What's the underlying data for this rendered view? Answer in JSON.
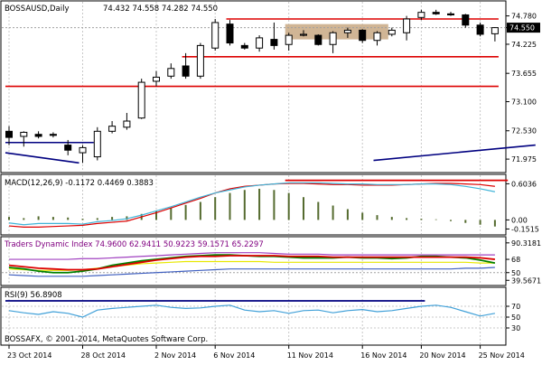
{
  "window": {
    "symbol_title": "BOSSAUSD,Daily",
    "ohlc_readout": "74.432 74.558 74.282 74.550",
    "copyright": "BOSSAFX, © 2001-2014, MetaQuotes Software Corp."
  },
  "colors": {
    "bull": "#ffffff",
    "bear": "#000000",
    "resistance": "#dd0000",
    "trend": "#000080",
    "macd_hist": "#556b2f",
    "macd_signal": "#dd0000",
    "macd_line": "#40b4d8",
    "tdi_purple": "#a040c0",
    "tdi_yellow": "#e8e800",
    "tdi_green": "#008000",
    "tdi_red": "#dd0000",
    "tdi_blue": "#4060c0",
    "rsi_line": "#40a0d8",
    "rsi_top": "#000080",
    "supply_zone": "#c8a882",
    "price_tag_bg": "#000000",
    "price_tag_text": "#ffffff"
  },
  "chart_data": [
    {
      "type": "candlestick",
      "title": "BOSSAUSD,Daily",
      "ylim": [
        71.8,
        74.95
      ],
      "price_tag": "74.550",
      "y_ticks": [
        "74.780",
        "74.550",
        "74.225",
        "73.655",
        "73.100",
        "72.530",
        "71.975"
      ],
      "y_tick_values": [
        74.78,
        74.55,
        74.225,
        73.655,
        73.1,
        72.53,
        71.975
      ],
      "candles": [
        {
          "o": 72.52,
          "h": 72.62,
          "l": 72.25,
          "c": 72.4
        },
        {
          "o": 72.42,
          "h": 72.52,
          "l": 72.22,
          "c": 72.5
        },
        {
          "o": 72.46,
          "h": 72.52,
          "l": 72.38,
          "c": 72.42
        },
        {
          "o": 72.46,
          "h": 72.5,
          "l": 72.4,
          "c": 72.44
        },
        {
          "o": 72.25,
          "h": 72.35,
          "l": 72.05,
          "c": 72.15
        },
        {
          "o": 72.1,
          "h": 72.25,
          "l": 71.9,
          "c": 72.2
        },
        {
          "o": 72.02,
          "h": 72.6,
          "l": 71.95,
          "c": 72.52
        },
        {
          "o": 72.52,
          "h": 72.72,
          "l": 72.48,
          "c": 72.62
        },
        {
          "o": 72.6,
          "h": 72.88,
          "l": 72.55,
          "c": 72.72
        },
        {
          "o": 72.78,
          "h": 73.55,
          "l": 72.76,
          "c": 73.48
        },
        {
          "o": 73.5,
          "h": 73.7,
          "l": 73.4,
          "c": 73.58
        },
        {
          "o": 73.6,
          "h": 73.85,
          "l": 73.55,
          "c": 73.75
        },
        {
          "o": 73.8,
          "h": 74.05,
          "l": 73.55,
          "c": 73.6
        },
        {
          "o": 73.6,
          "h": 74.25,
          "l": 73.55,
          "c": 74.2
        },
        {
          "o": 74.15,
          "h": 74.72,
          "l": 74.1,
          "c": 74.65
        },
        {
          "o": 74.62,
          "h": 74.7,
          "l": 74.2,
          "c": 74.25
        },
        {
          "o": 74.2,
          "h": 74.25,
          "l": 74.12,
          "c": 74.15
        },
        {
          "o": 74.15,
          "h": 74.4,
          "l": 74.08,
          "c": 74.35
        },
        {
          "o": 74.32,
          "h": 74.65,
          "l": 74.12,
          "c": 74.2
        },
        {
          "o": 74.22,
          "h": 74.45,
          "l": 74.1,
          "c": 74.4
        },
        {
          "o": 74.4,
          "h": 74.5,
          "l": 74.38,
          "c": 74.42
        },
        {
          "o": 74.4,
          "h": 74.42,
          "l": 74.2,
          "c": 74.22
        },
        {
          "o": 74.22,
          "h": 74.48,
          "l": 74.05,
          "c": 74.45
        },
        {
          "o": 74.45,
          "h": 74.55,
          "l": 74.35,
          "c": 74.5
        },
        {
          "o": 74.5,
          "h": 74.52,
          "l": 74.25,
          "c": 74.3
        },
        {
          "o": 74.3,
          "h": 74.48,
          "l": 74.2,
          "c": 74.45
        },
        {
          "o": 74.42,
          "h": 74.55,
          "l": 74.38,
          "c": 74.5
        },
        {
          "o": 74.45,
          "h": 74.78,
          "l": 74.3,
          "c": 74.72
        },
        {
          "o": 74.75,
          "h": 74.9,
          "l": 74.7,
          "c": 74.85
        },
        {
          "o": 74.85,
          "h": 74.9,
          "l": 74.8,
          "c": 74.82
        },
        {
          "o": 74.82,
          "h": 74.86,
          "l": 74.78,
          "c": 74.8
        },
        {
          "o": 74.8,
          "h": 74.82,
          "l": 74.55,
          "c": 74.6
        },
        {
          "o": 74.6,
          "h": 74.65,
          "l": 74.38,
          "c": 74.42
        },
        {
          "o": 74.43,
          "h": 74.56,
          "l": 74.28,
          "c": 74.55
        }
      ],
      "resistance_levels": [
        {
          "value": 74.72,
          "from": 15,
          "to": 33
        },
        {
          "value": 73.98,
          "from": 12,
          "to": 33
        },
        {
          "value": 73.4,
          "from": 0,
          "to": 33
        }
      ],
      "trendlines": [
        {
          "from": [
            0,
            72.1
          ],
          "to": [
            5,
            71.9
          ]
        },
        {
          "from": [
            25,
            71.95
          ],
          "to": [
            36,
            72.25
          ]
        },
        {
          "from": [
            0,
            72.3
          ],
          "to": [
            6,
            72.3
          ]
        }
      ],
      "zone": {
        "from": 19,
        "to": 26,
        "top": 74.62,
        "bottom": 74.32
      }
    },
    {
      "type": "line",
      "title": "MACD(12,26,9) -0.1172 0.4469 0.3883",
      "ylim": [
        -0.22,
        0.7
      ],
      "y_ticks": [
        "0.6036",
        "0.00",
        "-0.1515"
      ],
      "y_tick_values": [
        0.6036,
        0.0,
        -0.1515
      ],
      "histogram": [
        0.05,
        0.03,
        0.06,
        0.05,
        0.04,
        0.02,
        0.03,
        0.05,
        0.06,
        0.1,
        0.15,
        0.2,
        0.25,
        0.3,
        0.38,
        0.45,
        0.5,
        0.52,
        0.5,
        0.45,
        0.38,
        0.3,
        0.24,
        0.18,
        0.12,
        0.08,
        0.05,
        0.03,
        0.02,
        0.01,
        -0.02,
        -0.05,
        -0.08,
        -0.11
      ],
      "series": [
        {
          "name": "signal",
          "values": [
            -0.1,
            -0.12,
            -0.12,
            -0.11,
            -0.1,
            -0.09,
            -0.06,
            -0.04,
            -0.02,
            0.05,
            0.12,
            0.2,
            0.28,
            0.36,
            0.45,
            0.52,
            0.56,
            0.58,
            0.6,
            0.61,
            0.61,
            0.6,
            0.59,
            0.59,
            0.58,
            0.58,
            0.58,
            0.59,
            0.6,
            0.61,
            0.61,
            0.6,
            0.59,
            0.56
          ]
        },
        {
          "name": "macd",
          "values": [
            -0.05,
            -0.08,
            -0.06,
            -0.06,
            -0.06,
            -0.07,
            -0.03,
            -0.01,
            0.02,
            0.08,
            0.15,
            0.22,
            0.3,
            0.38,
            0.45,
            0.5,
            0.55,
            0.58,
            0.6,
            0.62,
            0.62,
            0.62,
            0.61,
            0.6,
            0.6,
            0.59,
            0.59,
            0.59,
            0.6,
            0.6,
            0.59,
            0.56,
            0.52,
            0.47
          ]
        }
      ],
      "top_line": {
        "value": 0.66,
        "from": 19,
        "to": 34
      }
    },
    {
      "type": "line",
      "title": "Traders Dynamic Index 74.9600 62.9411 50.9223 59.1571 65.2297",
      "ylim": [
        35,
        95
      ],
      "y_ticks": [
        "90.3181",
        "68",
        "50",
        "39.5671"
      ],
      "y_tick_values": [
        90.3181,
        68,
        50,
        39.5671
      ],
      "series": [
        {
          "name": "purple",
          "values": [
            68,
            68,
            68,
            68,
            68,
            69,
            69,
            70,
            71,
            72,
            73,
            74,
            75,
            76,
            77,
            77,
            77,
            77,
            76,
            75,
            75,
            75,
            74,
            74,
            74,
            74,
            74,
            74,
            74,
            74,
            74,
            74,
            74,
            74
          ]
        },
        {
          "name": "yellow",
          "values": [
            55,
            54,
            53,
            53,
            53,
            54,
            56,
            58,
            60,
            62,
            63,
            64,
            65,
            65,
            65,
            65,
            65,
            65,
            64,
            64,
            64,
            64,
            64,
            64,
            64,
            64,
            64,
            64,
            64,
            64,
            64,
            64,
            63,
            63
          ]
        },
        {
          "name": "green",
          "values": [
            57,
            55,
            52,
            50,
            50,
            52,
            55,
            60,
            63,
            66,
            68,
            70,
            72,
            73,
            74,
            74,
            73,
            72,
            72,
            71,
            70,
            70,
            70,
            71,
            70,
            70,
            69,
            70,
            72,
            72,
            71,
            70,
            67,
            63
          ]
        },
        {
          "name": "red",
          "values": [
            60,
            58,
            56,
            55,
            54,
            54,
            55,
            58,
            61,
            64,
            67,
            69,
            71,
            72,
            72,
            73,
            73,
            73,
            73,
            72,
            72,
            72,
            71,
            71,
            71,
            71,
            71,
            71,
            71,
            71,
            71,
            71,
            70,
            68
          ]
        },
        {
          "name": "blue",
          "values": [
            47,
            46,
            45,
            45,
            45,
            45,
            46,
            47,
            48,
            49,
            50,
            51,
            52,
            53,
            54,
            55,
            55,
            55,
            55,
            55,
            55,
            55,
            55,
            55,
            55,
            55,
            55,
            55,
            55,
            55,
            55,
            56,
            56,
            57
          ]
        }
      ],
      "level_line": 50
    },
    {
      "type": "line",
      "title": "RSI(9) 56.8908",
      "ylim": [
        0,
        100
      ],
      "y_ticks": [
        "70",
        "50",
        "30"
      ],
      "y_tick_values": [
        70,
        50,
        30
      ],
      "series": [
        {
          "name": "rsi",
          "values": [
            62,
            58,
            55,
            60,
            57,
            50,
            63,
            66,
            68,
            70,
            72,
            68,
            66,
            67,
            70,
            72,
            63,
            60,
            62,
            57,
            62,
            63,
            58,
            62,
            64,
            60,
            62,
            66,
            70,
            72,
            68,
            60,
            52,
            57
          ]
        }
      ],
      "top_line": {
        "value": 80,
        "from": 0,
        "to": 28
      }
    }
  ],
  "x_axis": {
    "labels": [
      "23 Oct 2014",
      "28 Oct 2014",
      "2 Nov 2014",
      "6 Nov 2014",
      "11 Nov 2014",
      "16 Nov 2014",
      "20 Nov 2014",
      "25 Nov 2014"
    ],
    "label_index": [
      0,
      5,
      10,
      14,
      19,
      24,
      28,
      32
    ]
  }
}
